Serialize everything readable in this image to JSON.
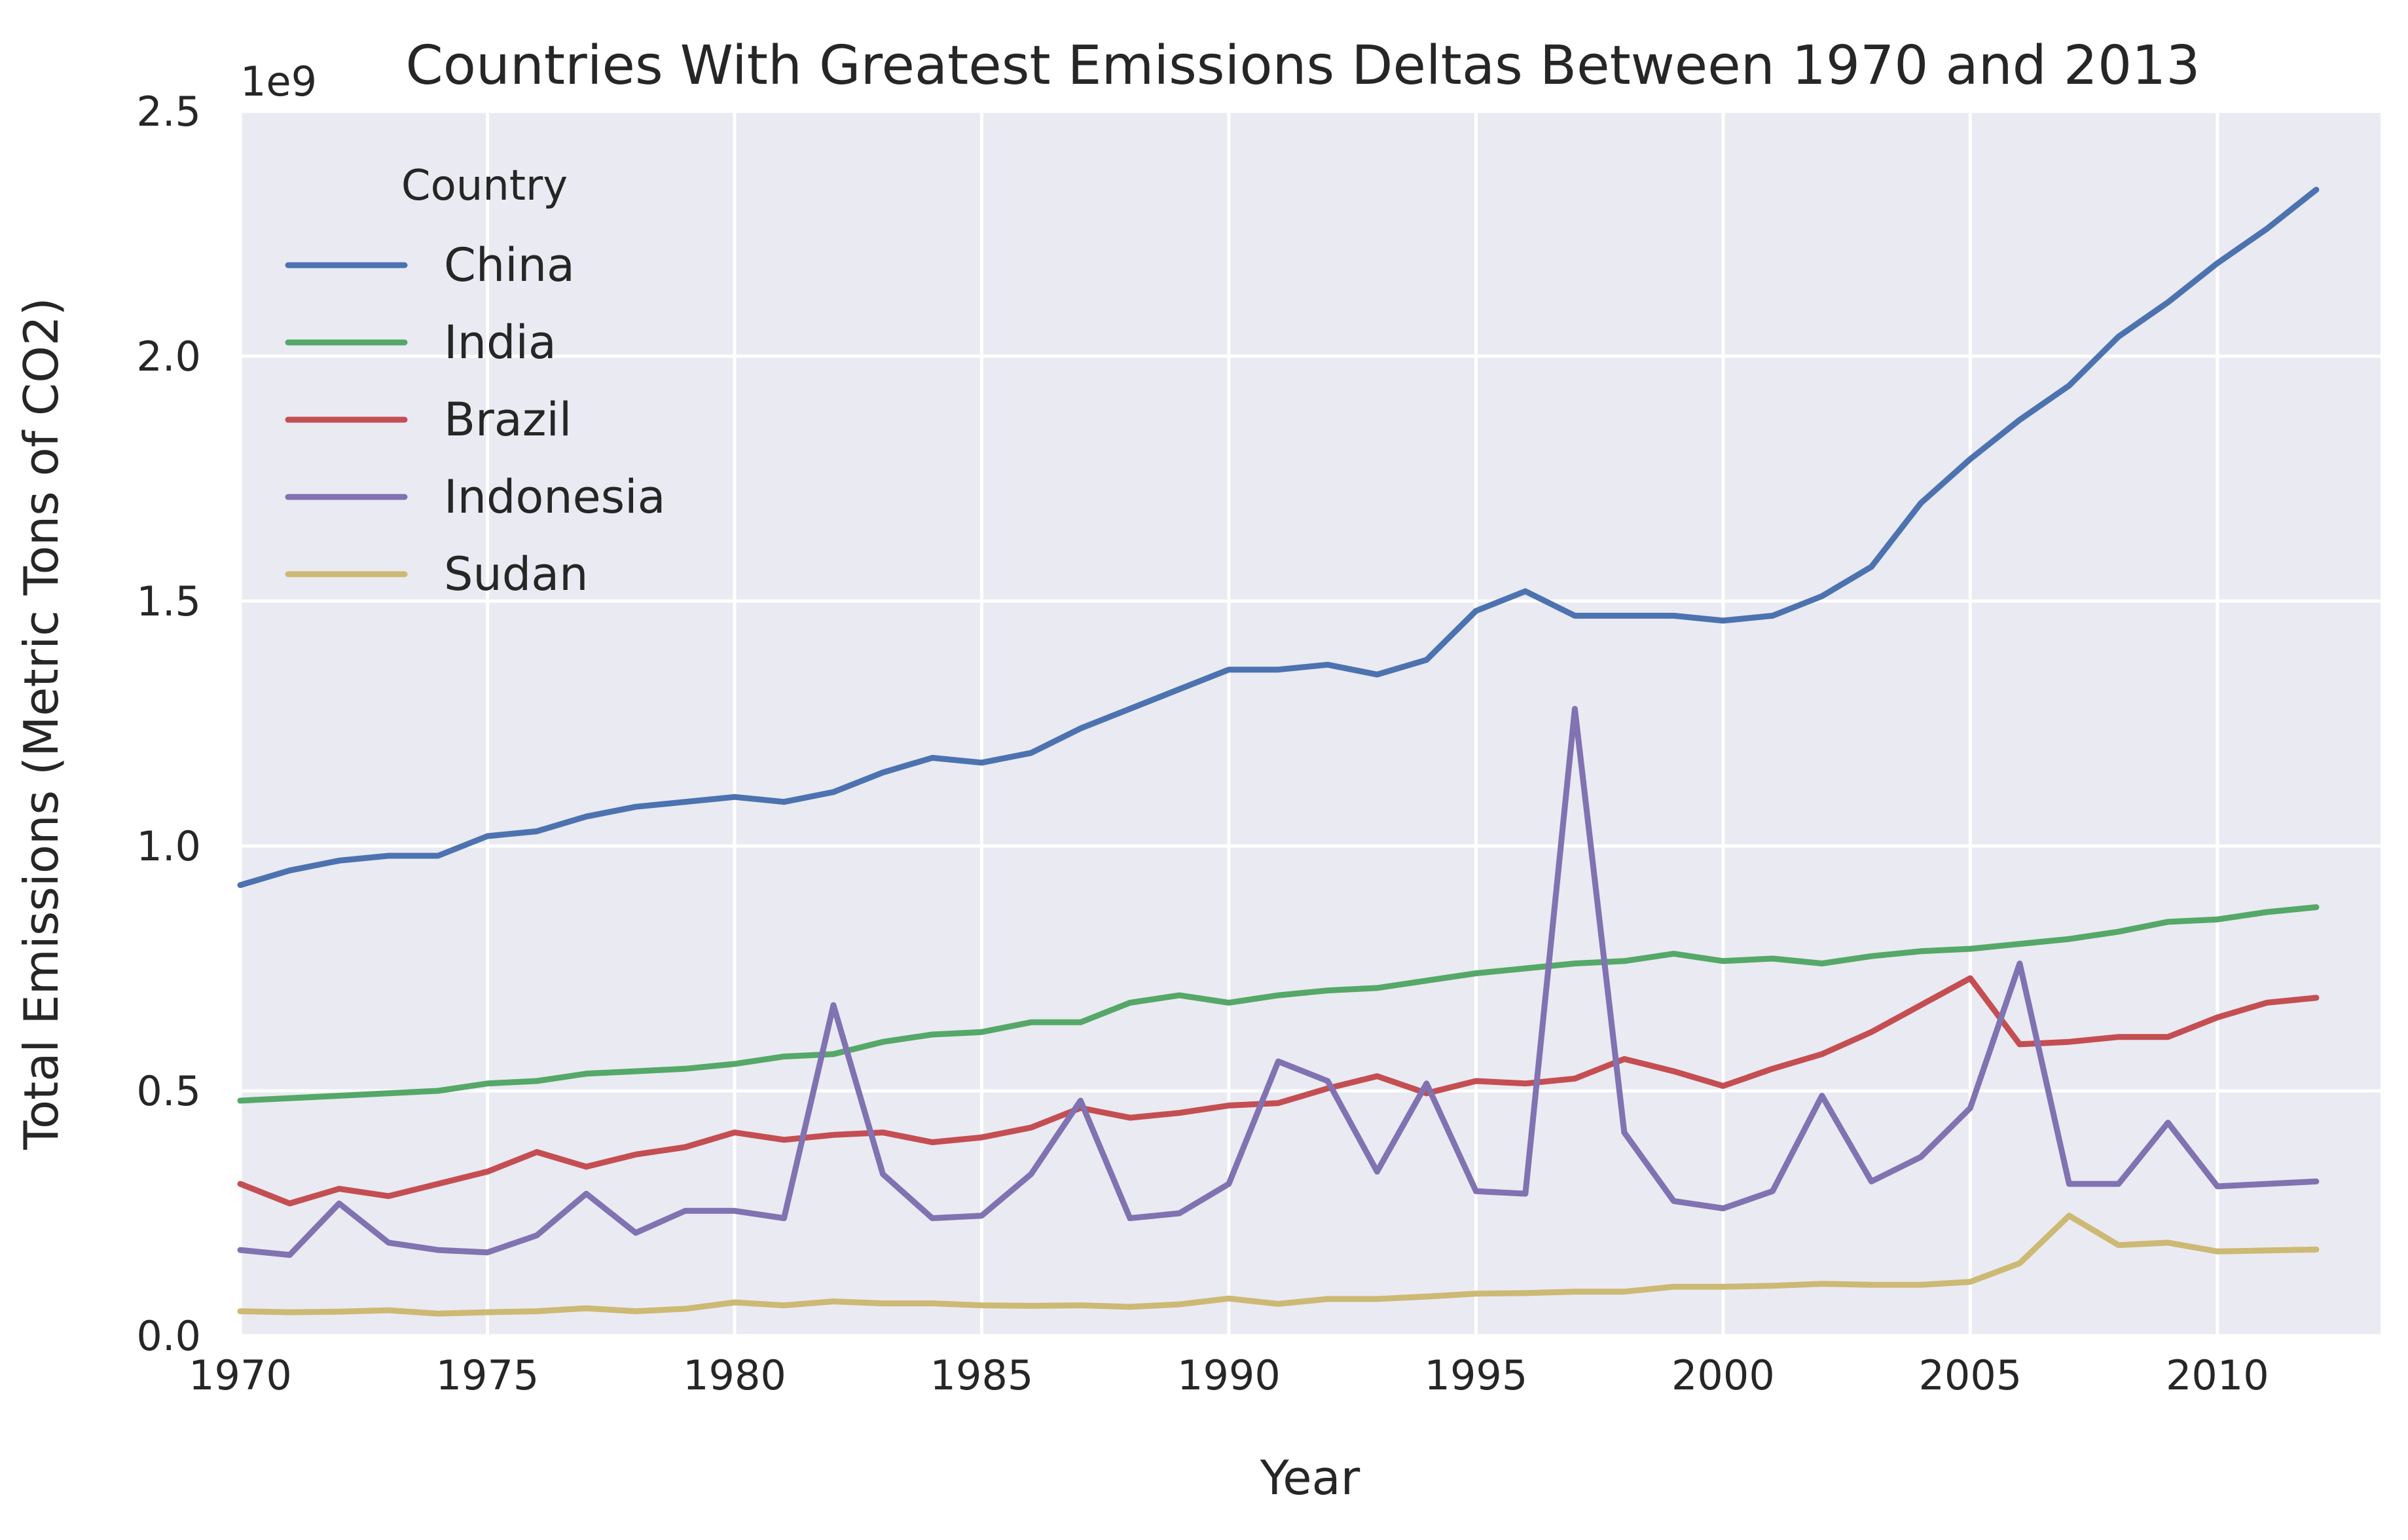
{
  "chart_data": {
    "type": "line",
    "title": "Countries With Greatest Emissions Deltas Between 1970 and 2013",
    "xlabel": "Year",
    "ylabel": "Total Emissions (Metric Tons of CO2)",
    "y_offset_label": "1e9",
    "xlim": [
      1970,
      2013.3
    ],
    "ylim": [
      0,
      2.5
    ],
    "x_ticks": [
      1970,
      1975,
      1980,
      1985,
      1990,
      1995,
      2000,
      2005,
      2010
    ],
    "y_ticks": [
      0.0,
      0.5,
      1.0,
      1.5,
      2.0,
      2.5
    ],
    "y_tick_labels": [
      "0.0",
      "0.5",
      "1.0",
      "1.5",
      "2.0",
      "2.5"
    ],
    "grid": true,
    "legend": {
      "title": "Country",
      "placement": "top-left"
    },
    "x": [
      1970,
      1971,
      1972,
      1973,
      1974,
      1975,
      1976,
      1977,
      1978,
      1979,
      1980,
      1981,
      1982,
      1983,
      1984,
      1985,
      1986,
      1987,
      1988,
      1989,
      1990,
      1991,
      1992,
      1993,
      1994,
      1995,
      1996,
      1997,
      1998,
      1999,
      2000,
      2001,
      2002,
      2003,
      2004,
      2005,
      2006,
      2007,
      2008,
      2009,
      2010,
      2011,
      2012
    ],
    "series": [
      {
        "name": "China",
        "color": "#4c72b0",
        "values": [
          0.92,
          0.95,
          0.97,
          0.98,
          0.98,
          1.02,
          1.03,
          1.06,
          1.08,
          1.09,
          1.1,
          1.09,
          1.11,
          1.15,
          1.18,
          1.17,
          1.19,
          1.24,
          1.28,
          1.32,
          1.36,
          1.36,
          1.37,
          1.35,
          1.38,
          1.48,
          1.52,
          1.47,
          1.47,
          1.47,
          1.46,
          1.47,
          1.51,
          1.57,
          1.7,
          1.79,
          1.87,
          1.94,
          2.04,
          2.11,
          2.19,
          2.26,
          2.34
        ]
      },
      {
        "name": "India",
        "color": "#55a868",
        "values": [
          0.48,
          0.485,
          0.49,
          0.495,
          0.5,
          0.515,
          0.52,
          0.535,
          0.54,
          0.545,
          0.555,
          0.57,
          0.575,
          0.6,
          0.615,
          0.62,
          0.64,
          0.64,
          0.68,
          0.695,
          0.68,
          0.695,
          0.705,
          0.71,
          0.725,
          0.74,
          0.75,
          0.76,
          0.765,
          0.78,
          0.765,
          0.77,
          0.76,
          0.775,
          0.785,
          0.79,
          0.8,
          0.81,
          0.825,
          0.845,
          0.85,
          0.865,
          0.875
        ]
      },
      {
        "name": "Brazil",
        "color": "#c44e52",
        "values": [
          0.31,
          0.27,
          0.3,
          0.285,
          0.31,
          0.335,
          0.375,
          0.345,
          0.37,
          0.385,
          0.415,
          0.4,
          0.41,
          0.415,
          0.395,
          0.405,
          0.425,
          0.465,
          0.445,
          0.455,
          0.47,
          0.475,
          0.505,
          0.53,
          0.495,
          0.52,
          0.515,
          0.525,
          0.565,
          0.54,
          0.51,
          0.545,
          0.575,
          0.62,
          0.675,
          0.73,
          0.595,
          0.6,
          0.61,
          0.61,
          0.65,
          0.68,
          0.69
        ]
      },
      {
        "name": "Indonesia",
        "color": "#8172b2",
        "values": [
          0.175,
          0.165,
          0.27,
          0.19,
          0.175,
          0.17,
          0.205,
          0.29,
          0.21,
          0.255,
          0.255,
          0.24,
          0.675,
          0.33,
          0.24,
          0.245,
          0.33,
          0.48,
          0.24,
          0.25,
          0.31,
          0.56,
          0.52,
          0.335,
          0.515,
          0.295,
          0.29,
          1.28,
          0.415,
          0.275,
          0.26,
          0.295,
          0.49,
          0.315,
          0.365,
          0.465,
          0.76,
          0.31,
          0.31,
          0.435,
          0.305,
          0.31,
          0.315
        ]
      },
      {
        "name": "Sudan",
        "color": "#ccb974",
        "values": [
          0.05,
          0.048,
          0.049,
          0.052,
          0.045,
          0.048,
          0.05,
          0.056,
          0.05,
          0.055,
          0.068,
          0.062,
          0.07,
          0.066,
          0.066,
          0.062,
          0.061,
          0.062,
          0.059,
          0.064,
          0.076,
          0.065,
          0.075,
          0.075,
          0.08,
          0.086,
          0.087,
          0.09,
          0.09,
          0.1,
          0.1,
          0.102,
          0.106,
          0.104,
          0.104,
          0.11,
          0.148,
          0.245,
          0.185,
          0.19,
          0.172,
          0.174,
          0.176
        ]
      }
    ]
  }
}
